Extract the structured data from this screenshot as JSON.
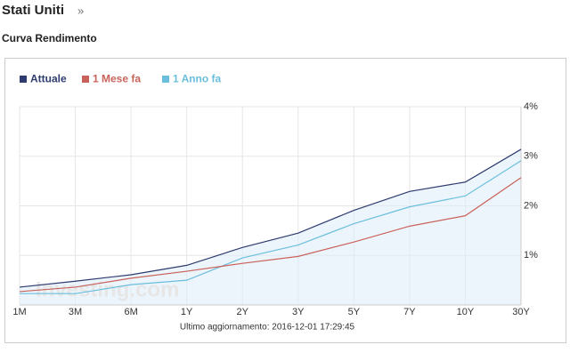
{
  "chart_data": {
    "type": "line",
    "heading": "Stati Uniti",
    "heading_arrow": "»",
    "title": "Curva Rendimento",
    "footer": "Ultimo aggiornamento: 2016-12-01 17:29:45",
    "watermark": "Investing.com",
    "categories": [
      "1M",
      "3M",
      "6M",
      "1Y",
      "2Y",
      "3Y",
      "5Y",
      "7Y",
      "10Y",
      "30Y"
    ],
    "series": [
      {
        "name": "Attuale",
        "color": "#2e3b6e",
        "values": [
          0.36,
          0.48,
          0.61,
          0.8,
          1.16,
          1.45,
          1.91,
          2.29,
          2.48,
          3.14
        ]
      },
      {
        "name": "1 Mese fa",
        "color": "#c9625a",
        "values": [
          0.27,
          0.36,
          0.54,
          0.68,
          0.84,
          0.98,
          1.27,
          1.59,
          1.8,
          2.57
        ]
      },
      {
        "name": "1 Anno fa",
        "color": "#6bbfdc",
        "values": [
          0.23,
          0.23,
          0.41,
          0.5,
          0.95,
          1.21,
          1.64,
          1.98,
          2.2,
          2.91
        ]
      }
    ],
    "ylim": [
      0,
      4
    ],
    "yticks": [
      {
        "value": 1,
        "label": "1%"
      },
      {
        "value": 2,
        "label": "2%"
      },
      {
        "value": 3,
        "label": "3%"
      },
      {
        "value": 4,
        "label": "4%"
      }
    ],
    "grid": true
  }
}
